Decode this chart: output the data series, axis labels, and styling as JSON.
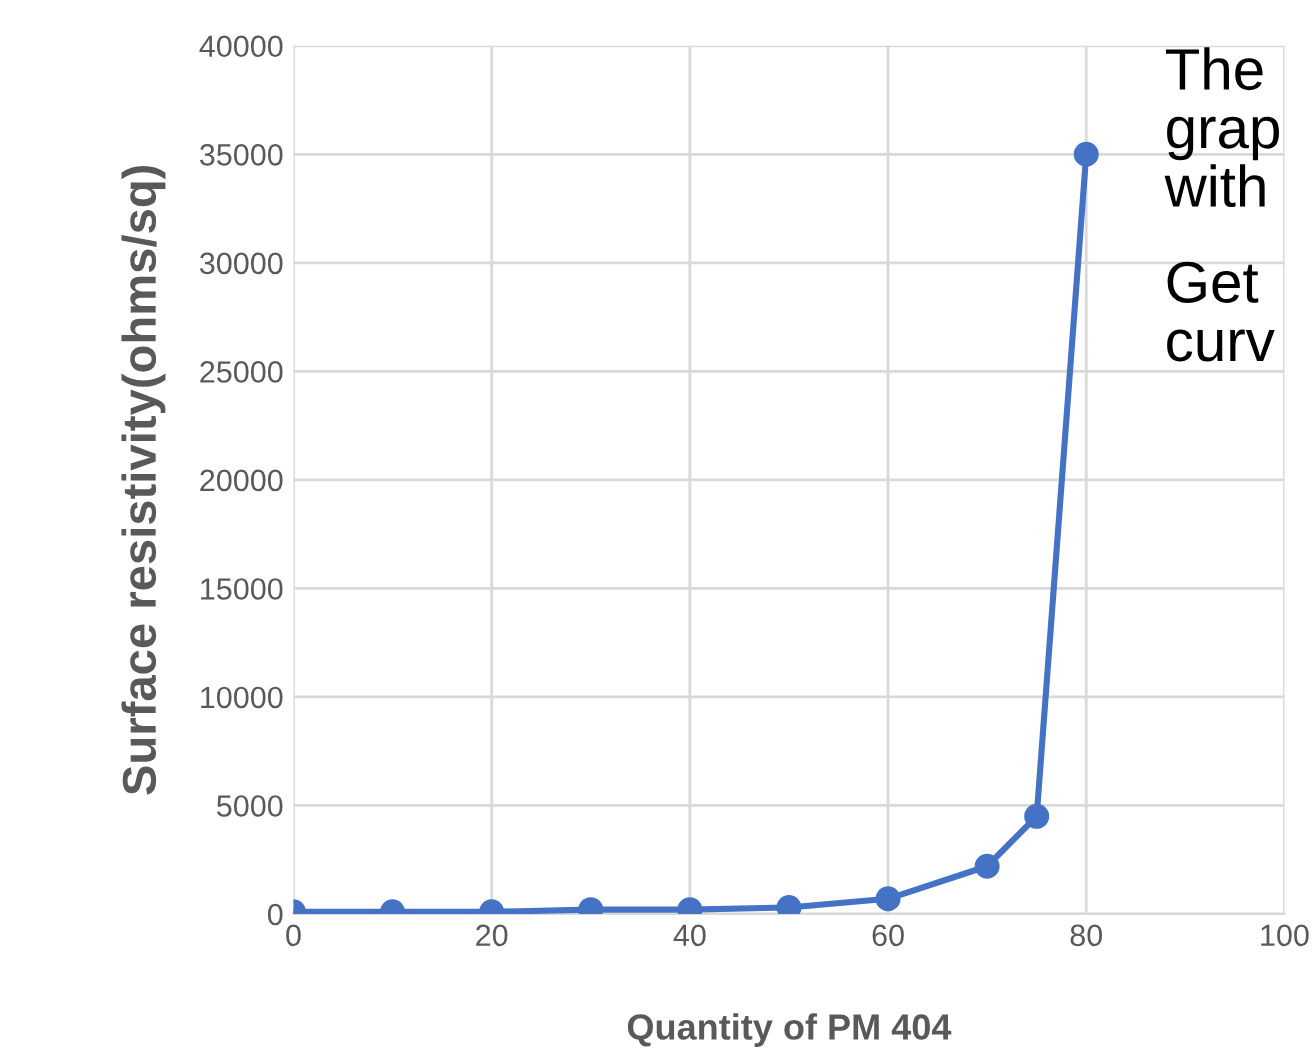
{
  "chart_data": {
    "type": "line",
    "xlabel": "Quantity of PM 404",
    "ylabel": "Surface resistivity(ohms/sq)",
    "x": [
      0,
      10,
      20,
      30,
      40,
      50,
      60,
      70,
      75,
      80
    ],
    "series": [
      {
        "color": "#4472c4",
        "values": [
          100,
          100,
          100,
          200,
          200,
          300,
          700,
          2200,
          4500,
          35000
        ]
      }
    ],
    "xlim": [
      0,
      100
    ],
    "xticks": [
      0,
      20,
      40,
      60,
      80,
      100
    ],
    "ylim": [
      0,
      40000
    ],
    "yticks": [
      0,
      5000,
      10000,
      15000,
      20000,
      25000,
      30000,
      35000,
      40000
    ],
    "grid": true,
    "marker": "circle",
    "line_style": "solid",
    "legend": false,
    "annotations": [
      "The",
      "grap",
      "with",
      "Get",
      "curv"
    ]
  }
}
